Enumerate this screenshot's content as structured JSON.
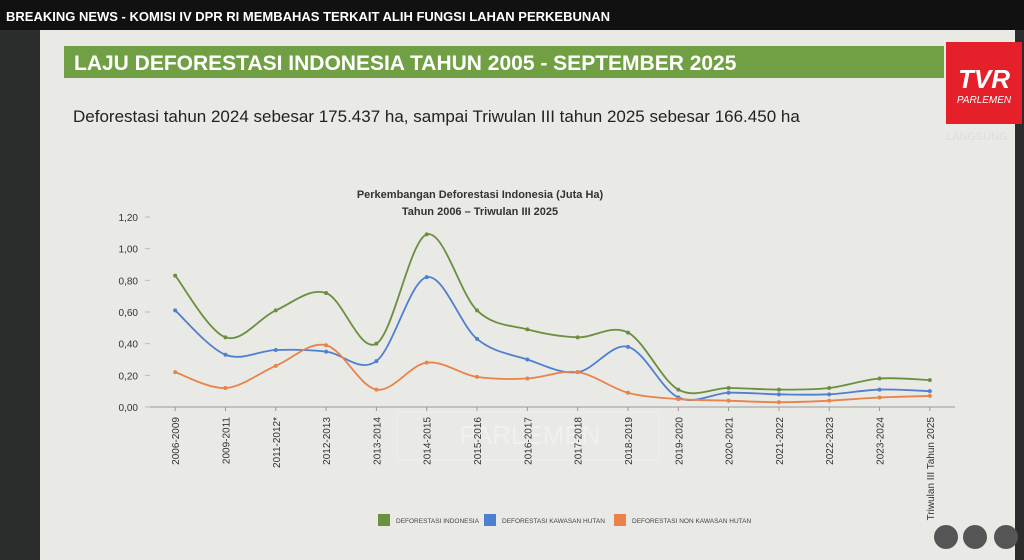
{
  "broadcast": {
    "ticker": "BREAKING NEWS - KOMISI IV DPR RI MEMBAHAS TERKAIT ALIH FUNGSI LAHAN PERKEBUNAN",
    "logo_brand": "TVR",
    "logo_sub": "PARLEMEN",
    "status": "LANGSUNG"
  },
  "slide": {
    "title": "LAJU DEFORESTASI INDONESIA TAHUN 2005 -  SEPTEMBER 2025",
    "subtitle": "Deforestasi tahun 2024 sebesar 175.437 ha, sampai Triwulan III tahun 2025 sebesar 166.450 ha"
  },
  "chart_data": {
    "type": "line",
    "title": "Perkembangan Deforestasi Indonesia (Juta Ha)",
    "subtitle": "Tahun 2006 – Triwulan III 2025",
    "categories": [
      "2006-2009",
      "2009-2011",
      "2011-2012*",
      "2012-2013",
      "2013-2014",
      "2014-2015",
      "2015-2016",
      "2016-2017",
      "2017-2018",
      "2018-2019",
      "2019-2020",
      "2020-2021",
      "2021-2022",
      "2022-2023",
      "2023-2024",
      "Triwulan III Tahun 2025"
    ],
    "series": [
      {
        "name": "DEFORESTASI INDONESIA",
        "color": "#6a8f3f",
        "values": [
          0.83,
          0.44,
          0.61,
          0.72,
          0.4,
          1.09,
          0.61,
          0.49,
          0.44,
          0.47,
          0.11,
          0.12,
          0.11,
          0.12,
          0.18,
          0.17
        ]
      },
      {
        "name": "DEFORESTASI KAWASAN HUTAN",
        "color": "#4f7fcf",
        "values": [
          0.61,
          0.33,
          0.36,
          0.35,
          0.29,
          0.82,
          0.43,
          0.3,
          0.22,
          0.38,
          0.06,
          0.09,
          0.08,
          0.08,
          0.11,
          0.1
        ]
      },
      {
        "name": "DEFORESTASI NON KAWASAN HUTAN",
        "color": "#e8834a",
        "values": [
          0.22,
          0.12,
          0.26,
          0.39,
          0.11,
          0.28,
          0.19,
          0.18,
          0.22,
          0.09,
          0.05,
          0.04,
          0.03,
          0.04,
          0.06,
          0.07
        ]
      }
    ],
    "ylim": [
      0,
      1.2
    ],
    "yticks": [
      {
        "value": 0,
        "label": "0,00"
      },
      {
        "value": 0.2,
        "label": "0,20"
      },
      {
        "value": 0.4,
        "label": "0,40"
      },
      {
        "value": 0.6,
        "label": "0,60"
      },
      {
        "value": 0.8,
        "label": "0,80"
      },
      {
        "value": 1.0,
        "label": "1,00"
      },
      {
        "value": 1.2,
        "label": "1,20"
      }
    ]
  }
}
